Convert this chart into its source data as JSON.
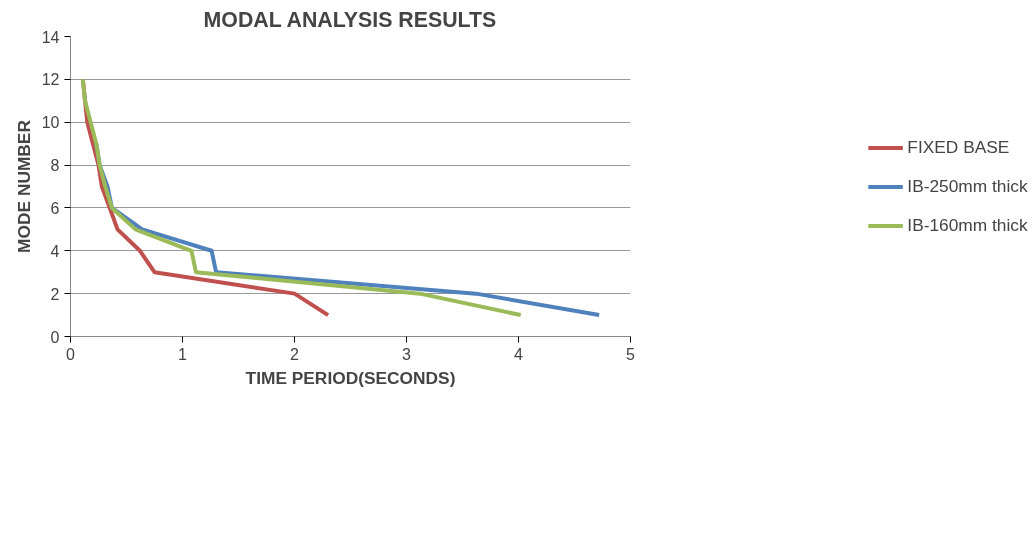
{
  "chart_data": {
    "type": "line",
    "title": "MODAL ANALYSIS RESULTS",
    "xlabel": "TIME PERIOD(SECONDS)",
    "ylabel": "MODE NUMBER",
    "xlim": [
      0,
      5
    ],
    "xticks": [
      0,
      1,
      2,
      3,
      4,
      5
    ],
    "ylim": [
      0,
      14
    ],
    "yticks": [
      0,
      2,
      4,
      6,
      8,
      10,
      12,
      14
    ],
    "grid": "y",
    "legend": "right",
    "marker": "none",
    "line_style": "solid",
    "series": [
      {
        "name": "FIXED BASE",
        "color": "#c0504d",
        "x": [
          2.3,
          2.0,
          0.75,
          0.62,
          0.42,
          0.35,
          0.28,
          0.25,
          0.2,
          0.15,
          0.13,
          0.11
        ],
        "values": [
          1,
          2,
          3,
          4,
          5,
          6,
          7,
          8,
          9,
          10,
          11,
          12
        ]
      },
      {
        "name": "IB-250mm thick",
        "color": "#4f81bd",
        "x": [
          4.72,
          3.62,
          1.3,
          1.26,
          0.64,
          0.37,
          0.33,
          0.26,
          0.23,
          null,
          null,
          null
        ],
        "values": [
          1,
          2,
          3,
          4,
          5,
          6,
          7,
          8,
          9,
          null,
          null,
          null
        ]
      },
      {
        "name": "IB-160mm thick",
        "color": "#9bbb59",
        "x": [
          4.02,
          3.12,
          1.12,
          1.08,
          0.58,
          0.37,
          0.31,
          0.26,
          0.23,
          0.18,
          0.13,
          0.11
        ],
        "values": [
          1,
          2,
          3,
          4,
          5,
          6,
          7,
          8,
          9,
          10,
          11,
          12
        ]
      }
    ]
  }
}
